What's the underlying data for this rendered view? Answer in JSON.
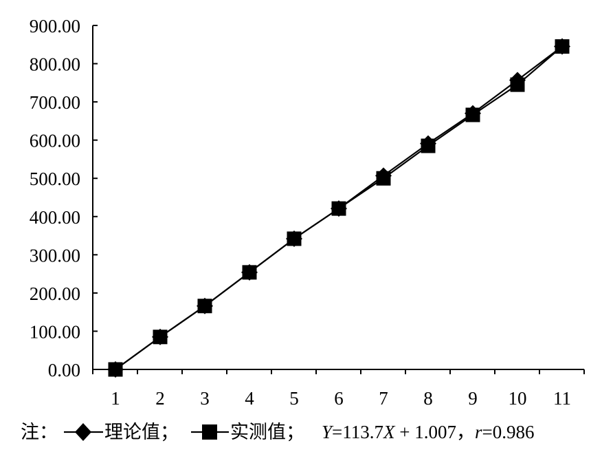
{
  "chart_data": {
    "type": "line",
    "x": [
      1,
      2,
      3,
      4,
      5,
      6,
      7,
      8,
      9,
      10,
      11
    ],
    "y_ticks": [
      "0.00",
      "100.00",
      "200.00",
      "300.00",
      "400.00",
      "500.00",
      "600.00",
      "700.00",
      "800.00",
      "900.00"
    ],
    "ylim": [
      0,
      900
    ],
    "xlim": [
      1,
      11
    ],
    "grid": false,
    "series": [
      {
        "name": "理论值",
        "marker": "diamond",
        "values": [
          0,
          85,
          166,
          254,
          342,
          421,
          507,
          591,
          670,
          757,
          845
        ]
      },
      {
        "name": "实测值",
        "marker": "square",
        "values": [
          0,
          85,
          166,
          254,
          342,
          421,
          500,
          585,
          666,
          745,
          845
        ]
      }
    ]
  },
  "legend": {
    "prefix": "注：",
    "sep": "；",
    "eq_y": "Y",
    "eq_mid": "=113.7",
    "eq_x": "X",
    "eq_tail": " + 1.007，",
    "eq_r": "r",
    "eq_rval": "=0.986"
  }
}
